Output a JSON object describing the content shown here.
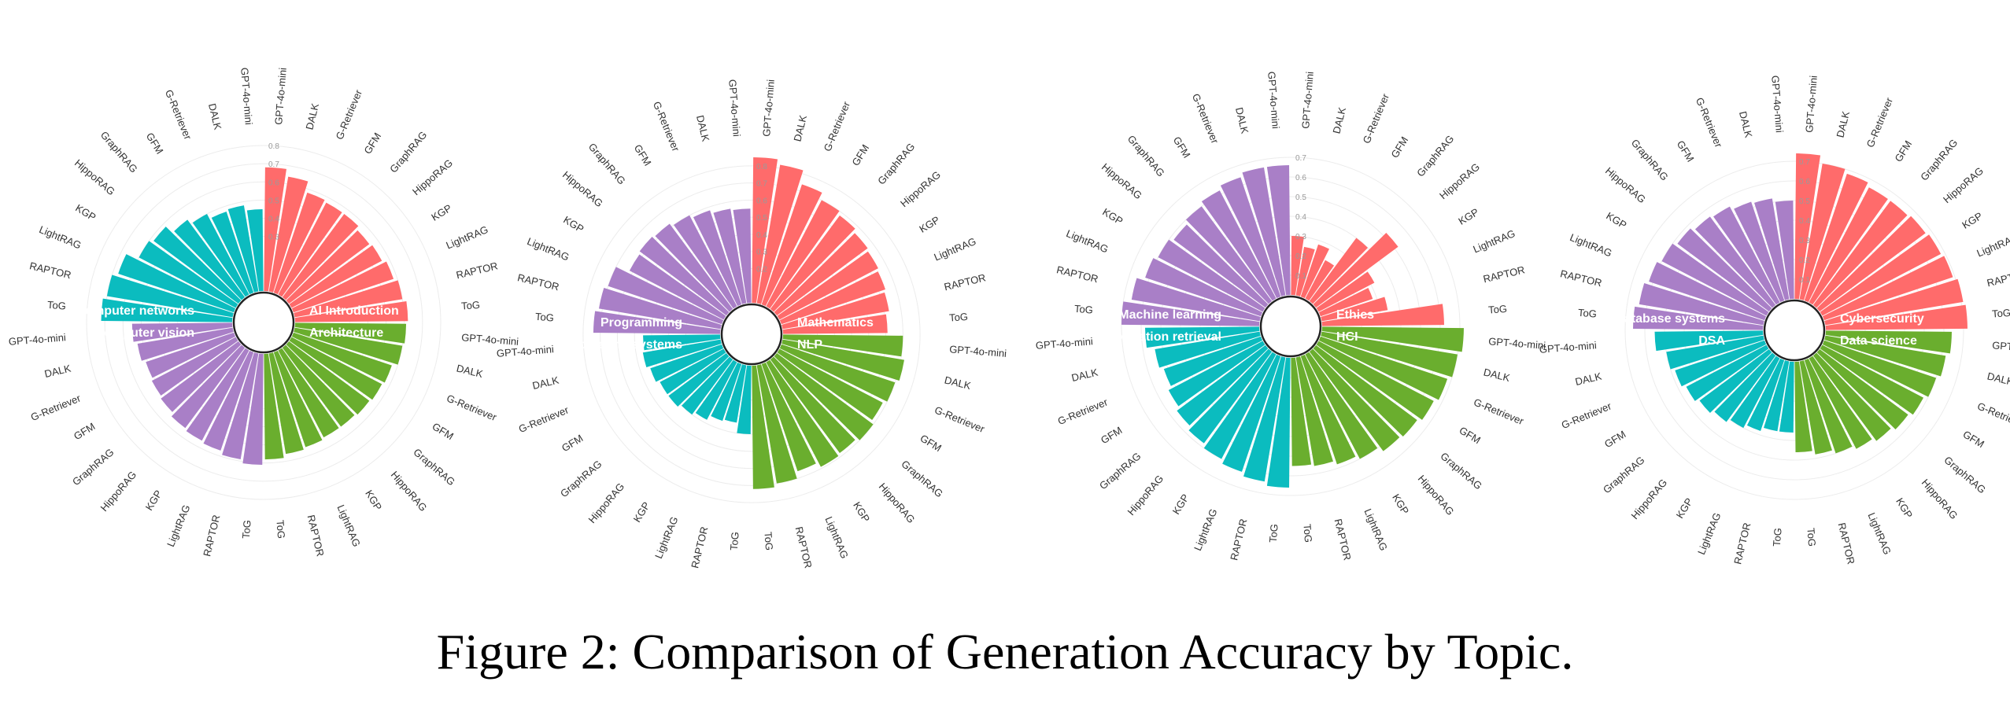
{
  "caption": "Figure 2: Comparison of Generation Accuracy by Topic.",
  "methods": [
    "GPT-4o-mini",
    "DALK",
    "G-Retriever",
    "GFM",
    "GraphRAG",
    "HippoRAG",
    "KGP",
    "LightRAG",
    "RAPTOR",
    "ToG"
  ],
  "colors": {
    "red": "#ff6b6b",
    "green": "#6aae2e",
    "teal": "#0bbcbf",
    "purple": "#a97fc7"
  },
  "chart_data": [
    {
      "type": "circular_bar",
      "ticks": [
        "0.8",
        "0.7",
        "0.6",
        "0.5",
        "0.4",
        "0.3"
      ],
      "tick_values": [
        0.8,
        0.7,
        0.6,
        0.5,
        0.4,
        0.3
      ],
      "rmax": 0.8,
      "quadrants": [
        {
          "topic": "AI Introduction",
          "color": "red",
          "position": "top-right",
          "values": [
            0.68,
            0.64,
            0.58,
            0.57,
            0.57,
            0.55,
            0.56,
            0.58,
            0.6,
            0.62
          ]
        },
        {
          "topic": "Architecture",
          "color": "green",
          "position": "bottom-right",
          "values": [
            0.61,
            0.6,
            0.57,
            0.56,
            0.55,
            0.54,
            0.54,
            0.55,
            0.56,
            0.58
          ]
        },
        {
          "topic": "Computer vision",
          "color": "purple",
          "position": "bottom-left",
          "values": [
            0.55,
            0.53,
            0.51,
            0.52,
            0.53,
            0.55,
            0.56,
            0.57,
            0.59,
            0.61
          ]
        },
        {
          "topic": "Computer networks",
          "color": "teal",
          "position": "top-left",
          "values": [
            0.45,
            0.48,
            0.47,
            0.5,
            0.53,
            0.58,
            0.6,
            0.67,
            0.7,
            0.72
          ]
        }
      ]
    },
    {
      "type": "circular_bar",
      "ticks": [
        "0.8",
        "0.7",
        "0.6",
        "0.5",
        "0.4",
        "0.3",
        "0.2"
      ],
      "tick_values": [
        0.8,
        0.7,
        0.6,
        0.5,
        0.4,
        0.3,
        0.2
      ],
      "rmax": 0.85,
      "quadrants": [
        {
          "topic": "Mathematics",
          "color": "red",
          "position": "top-right",
          "values": [
            0.85,
            0.82,
            0.74,
            0.7,
            0.68,
            0.66,
            0.65,
            0.64,
            0.63,
            0.61
          ]
        },
        {
          "topic": "NLP",
          "color": "green",
          "position": "bottom-right",
          "values": [
            0.7,
            0.72,
            0.7,
            0.68,
            0.7,
            0.68,
            0.69,
            0.66,
            0.7,
            0.72
          ]
        },
        {
          "topic": "Operating systems",
          "color": "teal",
          "position": "bottom-left",
          "values": [
            0.45,
            0.46,
            0.44,
            0.42,
            0.42,
            0.4,
            0.38,
            0.35,
            0.34,
            0.4
          ]
        },
        {
          "topic": "Programming",
          "color": "purple",
          "position": "top-left",
          "values": [
            0.55,
            0.56,
            0.58,
            0.6,
            0.62,
            0.63,
            0.62,
            0.7,
            0.72,
            0.74
          ]
        }
      ]
    },
    {
      "type": "circular_bar",
      "ticks": [
        "0.7",
        "0.6",
        "0.5",
        "0.4",
        "0.3",
        "0.2",
        "0.1"
      ],
      "tick_values": [
        0.7,
        0.6,
        0.5,
        0.4,
        0.3,
        0.2,
        0.1
      ],
      "rmax": 0.74,
      "quadrants": [
        {
          "topic": "Ethics",
          "color": "red",
          "position": "top-right",
          "values": [
            0.3,
            0.25,
            0.28,
            0.22,
            0.4,
            0.52,
            0.32,
            0.28,
            0.34,
            0.62
          ]
        },
        {
          "topic": "HCI",
          "color": "green",
          "position": "bottom-right",
          "values": [
            0.72,
            0.7,
            0.68,
            0.66,
            0.64,
            0.63,
            0.6,
            0.58,
            0.56,
            0.55
          ]
        },
        {
          "topic": "Information retrieval",
          "color": "teal",
          "position": "bottom-left",
          "values": [
            0.58,
            0.54,
            0.52,
            0.54,
            0.56,
            0.58,
            0.6,
            0.62,
            0.64,
            0.66
          ]
        },
        {
          "topic": "Machine learning",
          "color": "purple",
          "position": "top-left",
          "values": [
            0.66,
            0.66,
            0.64,
            0.62,
            0.6,
            0.58,
            0.6,
            0.62,
            0.66,
            0.7
          ]
        }
      ]
    },
    {
      "type": "circular_bar",
      "ticks": [
        "0.7",
        "0.6",
        "0.5",
        "0.4",
        "0.3",
        "0.2",
        "0.1"
      ],
      "tick_values": [
        0.7,
        0.6,
        0.5,
        0.4,
        0.3,
        0.2,
        0.1
      ],
      "rmax": 0.74,
      "quadrants": [
        {
          "topic": "Cybersecurity",
          "color": "red",
          "position": "top-right",
          "values": [
            0.74,
            0.7,
            0.68,
            0.66,
            0.66,
            0.67,
            0.68,
            0.69,
            0.71,
            0.72
          ]
        },
        {
          "topic": "Data science",
          "color": "green",
          "position": "bottom-right",
          "values": [
            0.64,
            0.62,
            0.6,
            0.58,
            0.56,
            0.54,
            0.52,
            0.5,
            0.48,
            0.46
          ]
        },
        {
          "topic": "DSA",
          "color": "teal",
          "position": "bottom-left",
          "values": [
            0.55,
            0.5,
            0.48,
            0.46,
            0.44,
            0.42,
            0.4,
            0.38,
            0.36,
            0.36
          ]
        },
        {
          "topic": "Database systems",
          "color": "purple",
          "position": "top-left",
          "values": [
            0.5,
            0.52,
            0.53,
            0.55,
            0.56,
            0.58,
            0.6,
            0.62,
            0.64,
            0.66
          ]
        }
      ]
    }
  ]
}
